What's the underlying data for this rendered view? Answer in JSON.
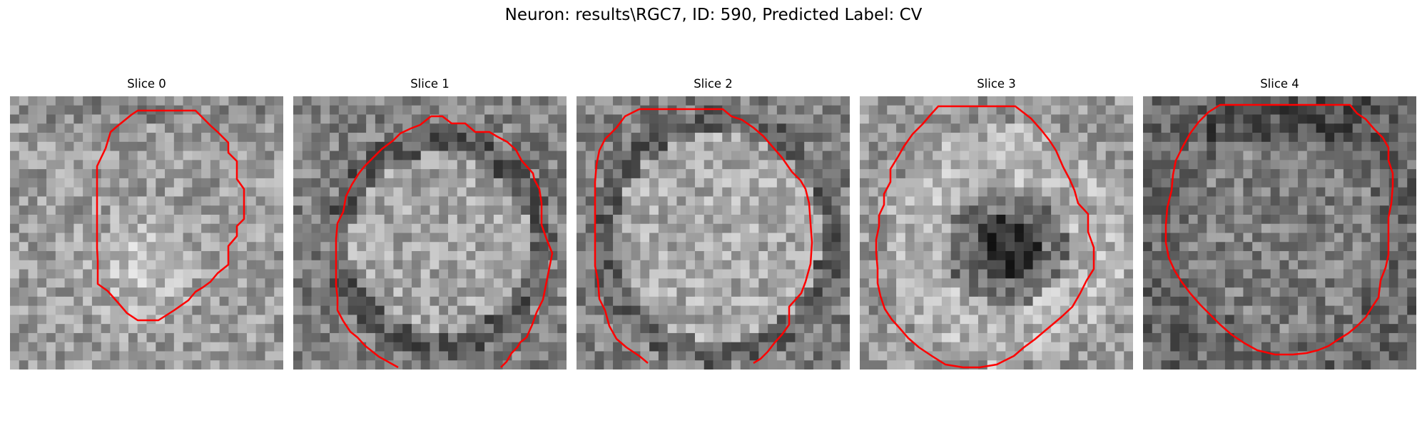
{
  "figure": {
    "title": "Neuron: results\\RGC7, ID: 590, Predicted Label: CV"
  },
  "slices": [
    {
      "title": "Slice 0"
    },
    {
      "title": "Slice 1"
    },
    {
      "title": "Slice 2"
    },
    {
      "title": "Slice 3"
    },
    {
      "title": "Slice 4"
    }
  ],
  "colors": {
    "contour": "#ff0000",
    "colormap": "gray"
  }
}
